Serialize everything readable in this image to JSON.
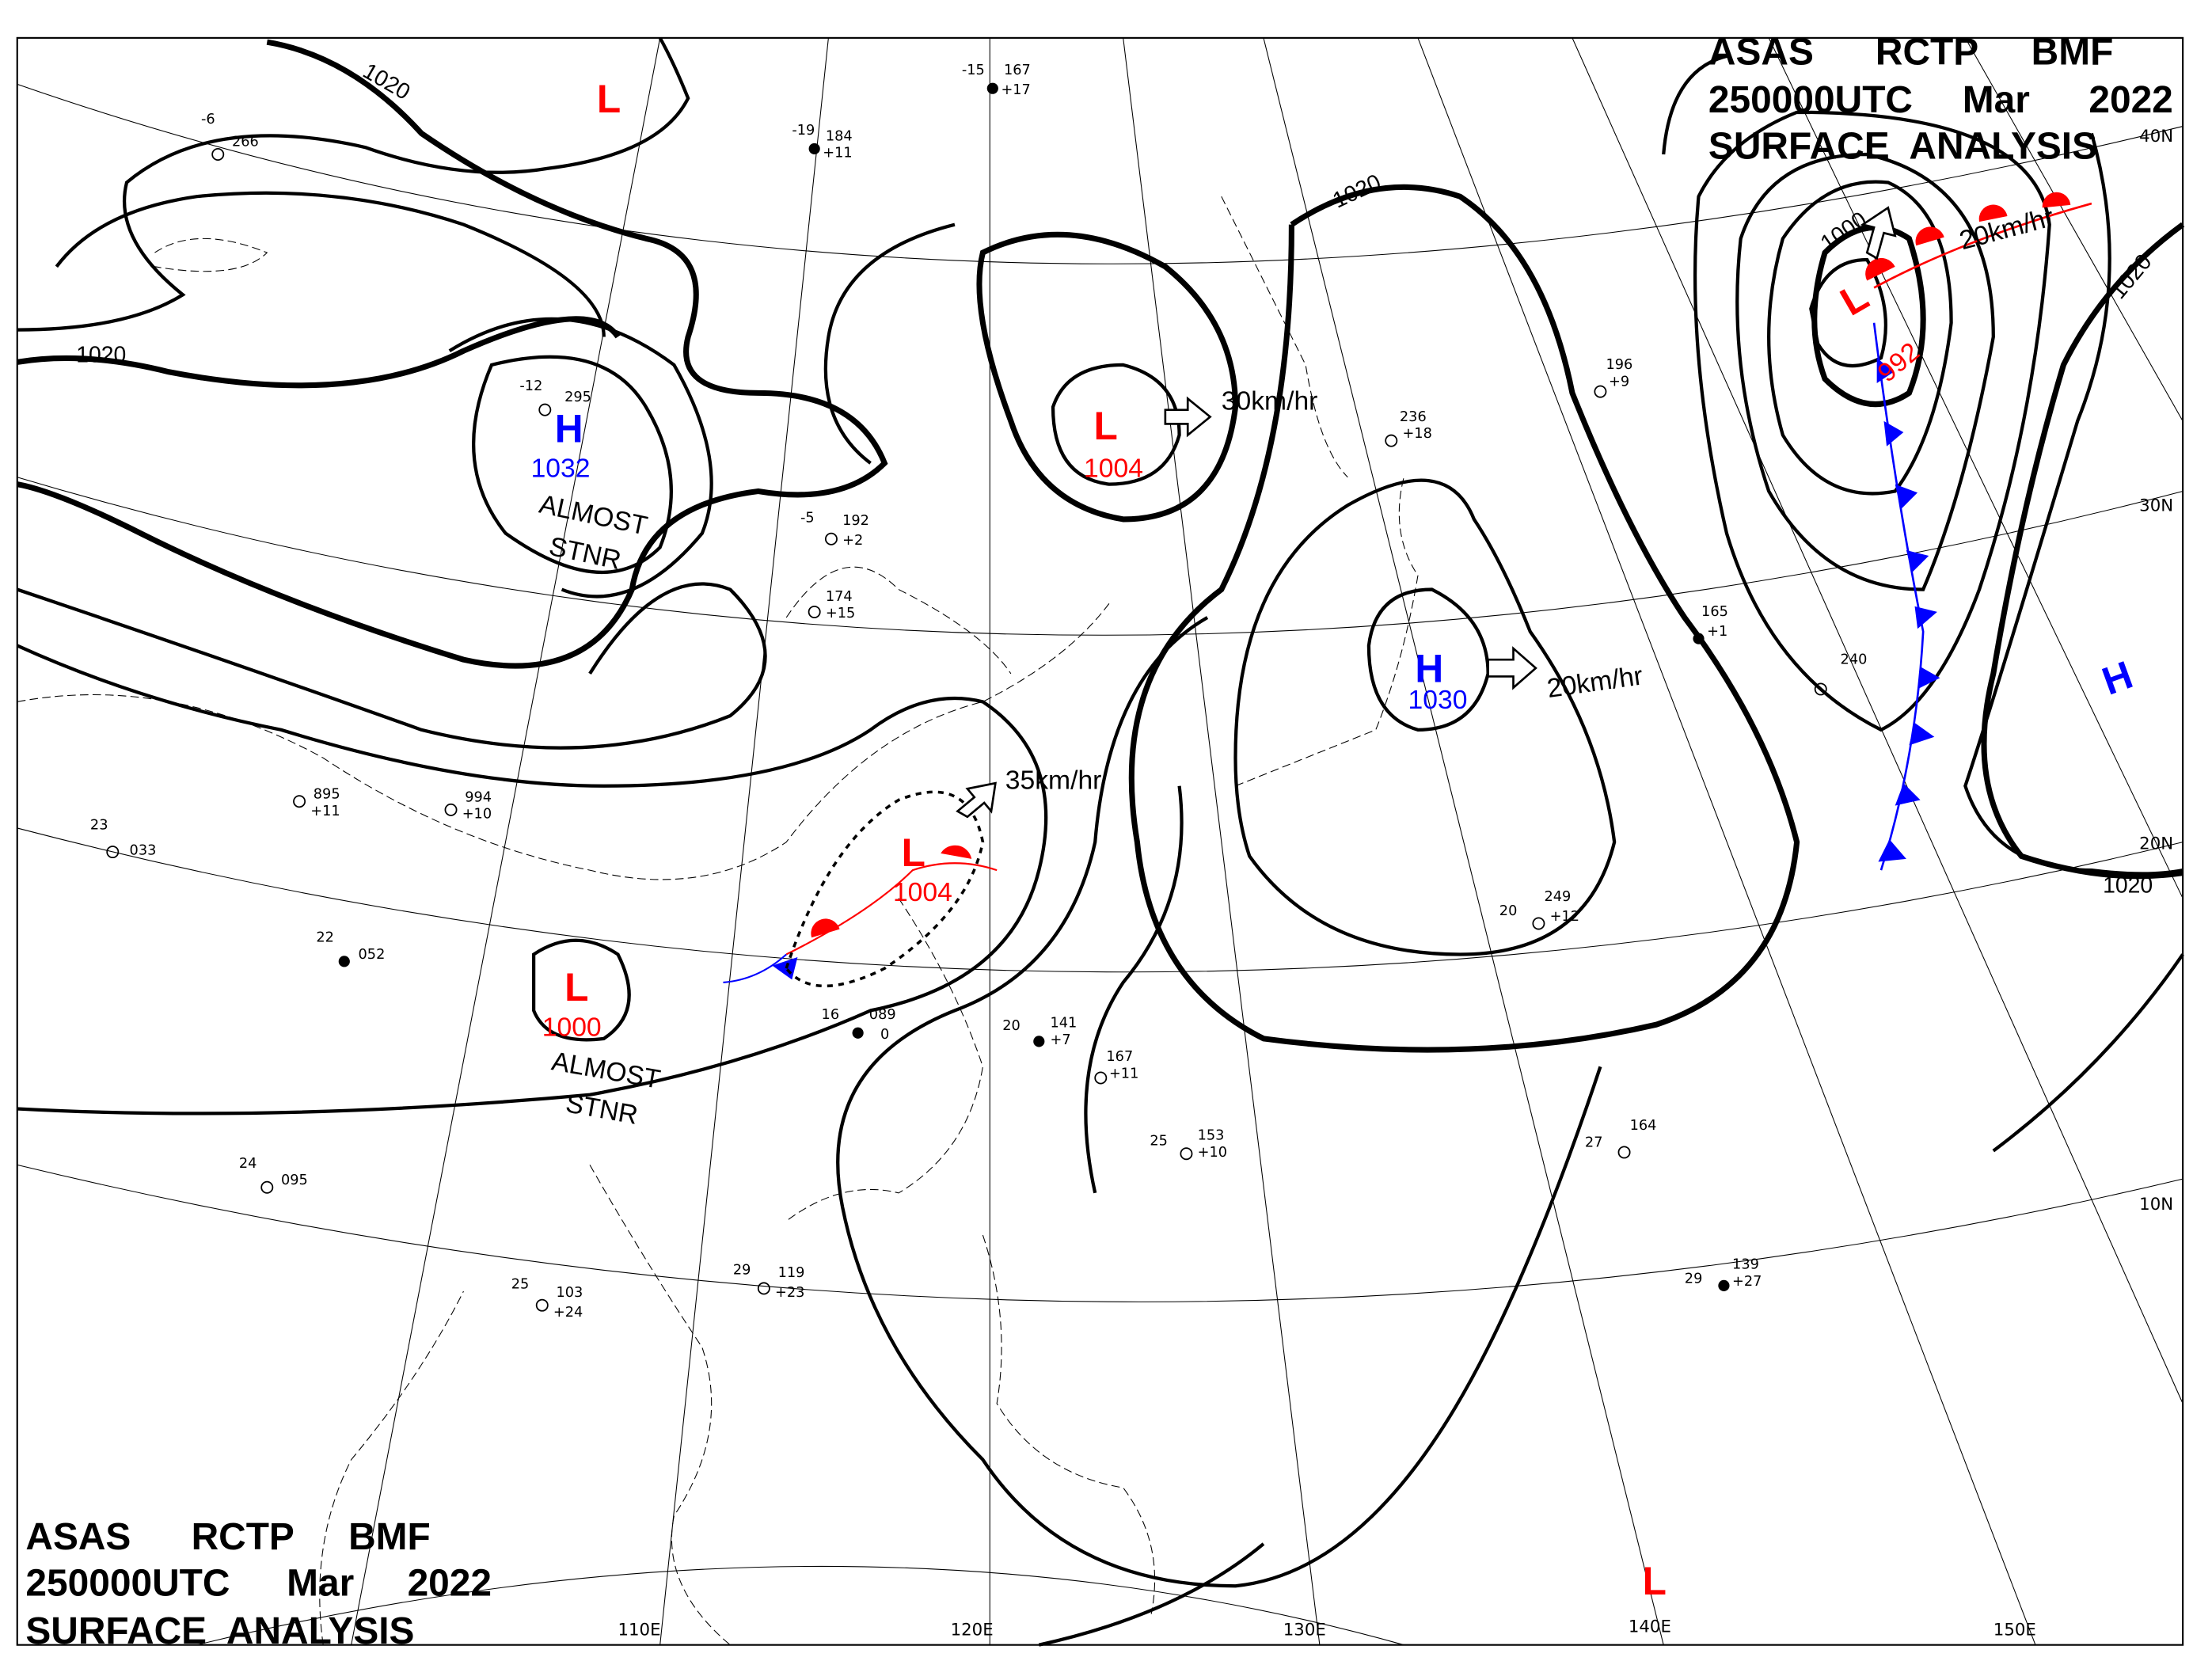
{
  "header_top": {
    "line1": [
      "ASAS",
      "RCTP",
      "BMF"
    ],
    "line2": [
      "250000UTC",
      "Mar",
      "2022"
    ],
    "line3": "SURFACE  ANALYSIS"
  },
  "header_bottom": {
    "line1": [
      "ASAS",
      "RCTP",
      "BMF"
    ],
    "line2": [
      "250000UTC",
      "Mar",
      "2022"
    ],
    "line3": "SURFACE  ANALYSIS"
  },
  "colors": {
    "low": "#ff0000",
    "high": "#0000ff",
    "isobar": "#000000",
    "warm_front": "#ff0000",
    "cold_front": "#0000ff"
  },
  "longitude_labels": [
    "110E",
    "120E",
    "130E",
    "140E",
    "150E"
  ],
  "latitude_labels": [
    "40N",
    "30N",
    "20N",
    "10N"
  ],
  "isobar_labels": [
    "1020",
    "1020",
    "1020",
    "1000",
    "1020",
    "1020"
  ],
  "pressure_centers": [
    {
      "type": "L",
      "value": ""
    },
    {
      "type": "H",
      "value": "1032"
    },
    {
      "type": "L",
      "value": "1004"
    },
    {
      "type": "L",
      "value": "1004"
    },
    {
      "type": "L",
      "value": "1000"
    },
    {
      "type": "H",
      "value": "1030"
    },
    {
      "type": "L",
      "value": "992"
    },
    {
      "type": "H",
      "value": ""
    },
    {
      "type": "L",
      "value": ""
    }
  ],
  "movements": [
    "30km/hr",
    "35km/hr",
    "20km/hr",
    "20km/hr"
  ],
  "stationary_notes": [
    [
      "ALMOST",
      "STNR"
    ],
    [
      "ALMOST",
      "STNR"
    ]
  ],
  "stations": [
    {
      "temp": "-15",
      "pres": "167",
      "tend": "+17"
    },
    {
      "temp": "-19",
      "pres": "184",
      "tend": "+11"
    },
    {
      "temp": "-6",
      "pres": "266",
      "tend": ""
    },
    {
      "temp": "-12",
      "pres": "295",
      "tend": ""
    },
    {
      "temp": "-5",
      "pres": "192",
      "tend": "+2"
    },
    {
      "temp": "",
      "pres": "174",
      "tend": "+15"
    },
    {
      "temp": "23",
      "pres": "033",
      "tend": ""
    },
    {
      "temp": "22",
      "pres": "052",
      "tend": ""
    },
    {
      "temp": "24",
      "pres": "095",
      "tend": ""
    },
    {
      "temp": "25",
      "pres": "103",
      "tend": "+24"
    },
    {
      "temp": "29",
      "pres": "119",
      "tend": "+23"
    },
    {
      "temp": "25",
      "pres": "153",
      "tend": "+10"
    },
    {
      "temp": "27",
      "pres": "164",
      "tend": ""
    },
    {
      "temp": "29",
      "pres": "139",
      "tend": "+27"
    },
    {
      "temp": "20",
      "pres": "249",
      "tend": "+12"
    },
    {
      "temp": "",
      "pres": "236",
      "tend": "+18"
    },
    {
      "temp": "",
      "pres": "196",
      "tend": "+9"
    },
    {
      "temp": "",
      "pres": "165",
      "tend": "+1"
    },
    {
      "temp": "",
      "pres": "240",
      "tend": ""
    },
    {
      "temp": "20",
      "pres": "141",
      "tend": "+7"
    },
    {
      "temp": "",
      "pres": "167",
      "tend": "+11"
    },
    {
      "temp": "16",
      "pres": "089",
      "tend": "0"
    },
    {
      "temp": "",
      "pres": "994",
      "tend": "+10"
    },
    {
      "temp": "",
      "pres": "895",
      "tend": "+11"
    }
  ]
}
